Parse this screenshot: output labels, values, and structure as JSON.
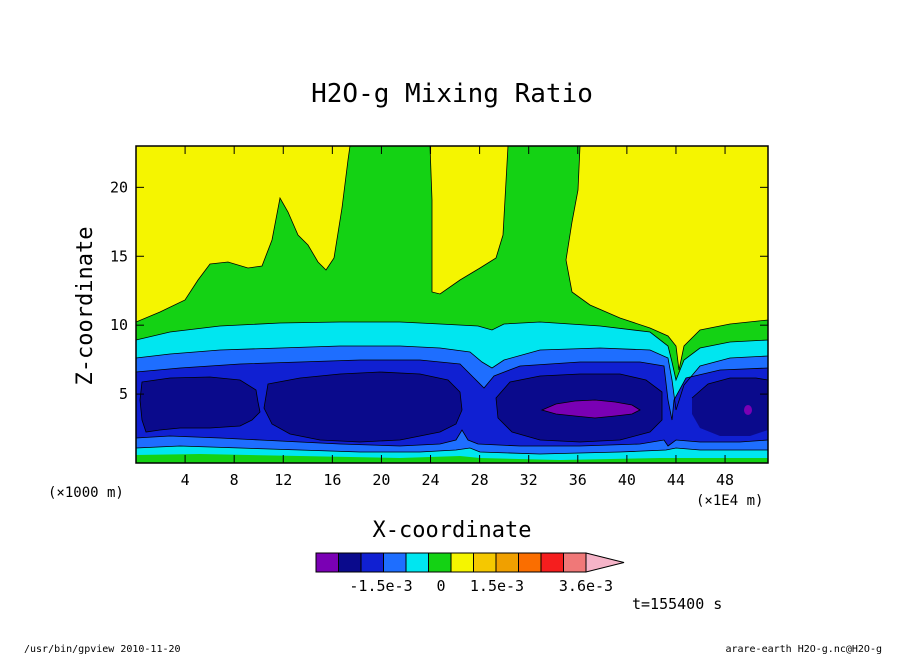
{
  "chart_data": {
    "type": "heatmap",
    "title": "H2O-g Mixing Ratio",
    "xlabel": "X-coordinate",
    "ylabel": "Z-coordinate",
    "x_unit_left": "(×1000 m)",
    "x_unit_right": "(×1E4 m)",
    "xlim": [
      0,
      51.5
    ],
    "ylim": [
      0,
      23
    ],
    "x_ticks": [
      4,
      8,
      12,
      16,
      20,
      24,
      28,
      32,
      36,
      40,
      44,
      48
    ],
    "y_ticks": [
      5,
      10,
      15,
      20
    ],
    "colorbar": {
      "levels": [
        "-1.5e-3",
        "0",
        "1.5e-3",
        "3.6e-3"
      ],
      "colors": [
        "#7a00b4",
        "#0a0a8c",
        "#1020d2",
        "#1e6eff",
        "#00e6f0",
        "#14d214",
        "#f5f500",
        "#f5c800",
        "#f0a000",
        "#fa6e00",
        "#f51e1e",
        "#f07878",
        "#f5b4c8"
      ]
    },
    "time_label": "t=155400 s"
  },
  "footer": {
    "left": "/usr/bin/gpview  2010-11-20",
    "right": "arare-earth_H2O-g.nc@H2O-g"
  }
}
